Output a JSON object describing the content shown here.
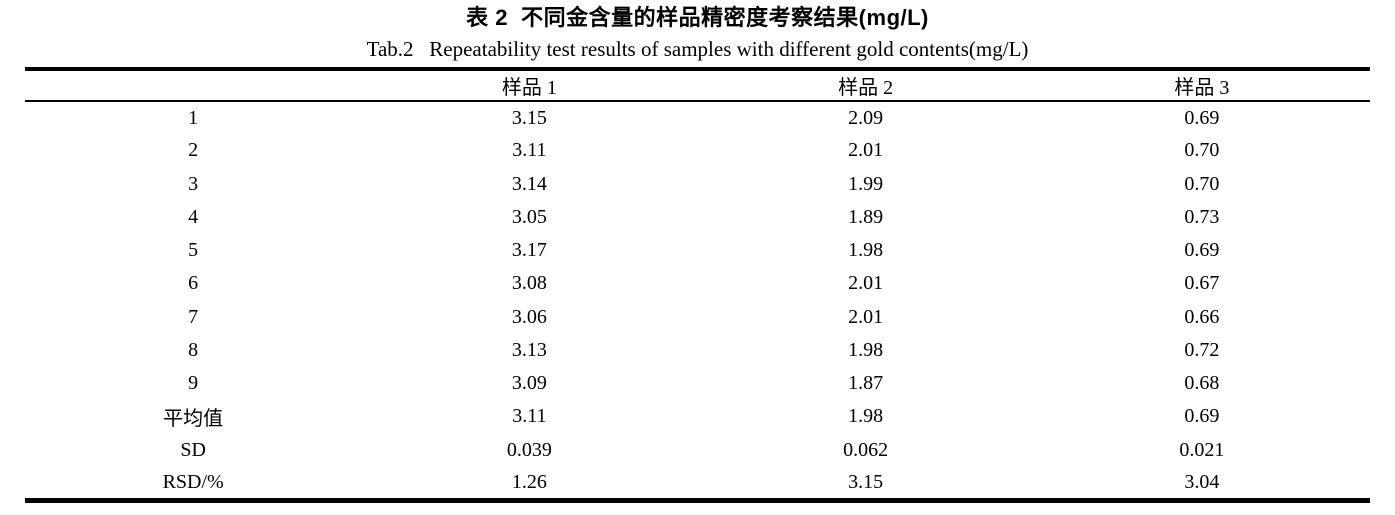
{
  "page": {
    "background": "#ffffff",
    "text_color": "#000000",
    "rule_color": "#000000"
  },
  "table": {
    "title_zh": "表 2  不同金含量的样品精密度考察结果(mg/L)",
    "title_en": "Tab.2   Repeatability test results of samples with different gold contents(mg/L)",
    "columns": [
      "",
      "样品 1",
      "样品 2",
      "样品 3"
    ],
    "rows": [
      {
        "label": "1",
        "values": [
          "3.15",
          "2.09",
          "0.69"
        ]
      },
      {
        "label": "2",
        "values": [
          "3.11",
          "2.01",
          "0.70"
        ]
      },
      {
        "label": "3",
        "values": [
          "3.14",
          "1.99",
          "0.70"
        ]
      },
      {
        "label": "4",
        "values": [
          "3.05",
          "1.89",
          "0.73"
        ]
      },
      {
        "label": "5",
        "values": [
          "3.17",
          "1.98",
          "0.69"
        ]
      },
      {
        "label": "6",
        "values": [
          "3.08",
          "2.01",
          "0.67"
        ]
      },
      {
        "label": "7",
        "values": [
          "3.06",
          "2.01",
          "0.66"
        ]
      },
      {
        "label": "8",
        "values": [
          "3.13",
          "1.98",
          "0.72"
        ]
      },
      {
        "label": "9",
        "values": [
          "3.09",
          "1.87",
          "0.68"
        ]
      },
      {
        "label": "平均值",
        "values": [
          "3.11",
          "1.98",
          "0.69"
        ]
      },
      {
        "label": "SD",
        "values": [
          "0.039",
          "0.062",
          "0.021"
        ]
      },
      {
        "label": "RSD/%",
        "values": [
          "1.26",
          "3.15",
          "3.04"
        ]
      }
    ]
  }
}
